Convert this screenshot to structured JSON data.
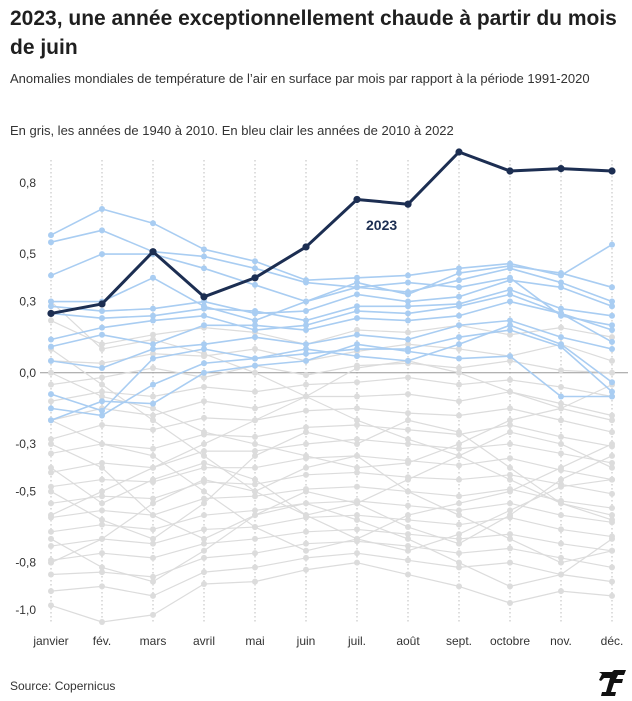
{
  "title": "2023, une année exceptionnellement chaude à partir du mois de juin",
  "subtitle": "Anomalies mondiales de température de l’air en surface par mois par rapport à la période 1991-2020",
  "note": "En gris, les années de 1940 à 2010. En bleu clair les années de 2010 à 2022",
  "source": "Source: Copernicus",
  "logo_icon": "le-figaro-logo",
  "colors": {
    "grey": "#dcdcdc",
    "light_blue": "#a9cdf2",
    "highlight": "#1c2e52",
    "grid": "#bdbdbd",
    "zero": "#999999"
  },
  "chart_data": {
    "type": "line",
    "categories": [
      "janvier",
      "fév.",
      "mars",
      "avril",
      "mai",
      "juin",
      "juil.",
      "août",
      "sept.",
      "octobre",
      "nov.",
      "déc."
    ],
    "y_ticks": [
      {
        "value": 0.8,
        "label": "0,8"
      },
      {
        "value": 0.5,
        "label": "0,5"
      },
      {
        "value": 0.3,
        "label": "0,3"
      },
      {
        "value": 0.0,
        "label": "0,0"
      },
      {
        "value": -0.3,
        "label": "-0,3"
      },
      {
        "value": -0.5,
        "label": "-0,5"
      },
      {
        "value": -0.8,
        "label": "-0,8"
      },
      {
        "value": -1.0,
        "label": "-1,0"
      }
    ],
    "ylim": [
      -1.05,
      0.93
    ],
    "grid": "vertical dotted",
    "highlight": {
      "name": "2023",
      "values": [
        0.25,
        0.29,
        0.51,
        0.32,
        0.4,
        0.53,
        0.73,
        0.71,
        0.93,
        0.85,
        0.86,
        0.85
      ]
    },
    "blue_series": [
      [
        0.58,
        0.69,
        0.63,
        0.52,
        0.47,
        0.39,
        0.4,
        0.41,
        0.44,
        0.46,
        0.41,
        0.54
      ],
      [
        0.55,
        0.6,
        0.51,
        0.49,
        0.44,
        0.38,
        0.36,
        0.34,
        0.39,
        0.44,
        0.38,
        0.3
      ],
      [
        0.41,
        0.5,
        0.5,
        0.44,
        0.37,
        0.3,
        0.38,
        0.33,
        0.42,
        0.45,
        0.42,
        0.36
      ],
      [
        0.3,
        0.3,
        0.4,
        0.28,
        0.22,
        0.3,
        0.36,
        0.38,
        0.36,
        0.4,
        0.24,
        0.2
      ],
      [
        0.28,
        0.26,
        0.27,
        0.3,
        0.25,
        0.26,
        0.33,
        0.3,
        0.32,
        0.39,
        0.36,
        0.28
      ],
      [
        0.25,
        0.23,
        0.24,
        0.27,
        0.26,
        0.22,
        0.28,
        0.28,
        0.29,
        0.35,
        0.27,
        0.24
      ],
      [
        0.14,
        0.19,
        0.22,
        0.24,
        0.18,
        0.2,
        0.26,
        0.25,
        0.28,
        0.33,
        0.25,
        0.13
      ],
      [
        0.11,
        0.16,
        0.12,
        0.2,
        0.2,
        0.18,
        0.23,
        0.22,
        0.24,
        0.3,
        0.25,
        0.18
      ],
      [
        0.05,
        0.02,
        0.1,
        0.12,
        0.15,
        0.12,
        0.16,
        0.14,
        0.2,
        0.22,
        0.15,
        0.1
      ],
      [
        -0.09,
        -0.16,
        0.06,
        0.1,
        0.06,
        0.08,
        0.1,
        0.1,
        0.15,
        0.18,
        0.11,
        -0.08
      ],
      [
        -0.15,
        -0.18,
        -0.05,
        0.04,
        0.06,
        0.1,
        0.07,
        0.05,
        0.12,
        0.2,
        0.12,
        -0.04
      ],
      [
        -0.2,
        -0.12,
        -0.13,
        0.0,
        0.03,
        0.05,
        0.12,
        0.09,
        0.06,
        0.07,
        -0.1,
        -0.1
      ]
    ],
    "grey_series": [
      [
        0.22,
        0.12,
        0.16,
        0.19,
        0.17,
        0.12,
        0.18,
        0.17,
        0.2,
        0.16,
        0.19,
        0.15
      ],
      [
        0.05,
        0.04,
        0.08,
        0.07,
        0.1,
        0.05,
        0.09,
        0.12,
        0.1,
        0.07,
        0.12,
        0.05
      ],
      [
        -0.05,
        -0.02,
        0.02,
        -0.02,
        0.03,
        -0.01,
        0.03,
        0.04,
        0.02,
        0.05,
        0.01,
        0.0
      ],
      [
        -0.12,
        -0.08,
        -0.1,
        -0.06,
        -0.08,
        -0.05,
        -0.04,
        -0.02,
        -0.05,
        -0.03,
        -0.06,
        -0.1
      ],
      [
        -0.2,
        -0.15,
        -0.18,
        -0.12,
        -0.15,
        -0.1,
        -0.1,
        -0.09,
        -0.12,
        -0.08,
        -0.13,
        -0.18
      ],
      [
        -0.28,
        -0.22,
        -0.24,
        -0.19,
        -0.2,
        -0.16,
        -0.15,
        -0.17,
        -0.18,
        -0.15,
        -0.2,
        -0.25
      ],
      [
        -0.34,
        -0.3,
        -0.32,
        -0.26,
        -0.27,
        -0.23,
        -0.22,
        -0.24,
        -0.26,
        -0.22,
        -0.27,
        -0.31
      ],
      [
        -0.42,
        -0.38,
        -0.4,
        -0.33,
        -0.33,
        -0.3,
        -0.28,
        -0.3,
        -0.32,
        -0.3,
        -0.34,
        -0.38
      ],
      [
        -0.48,
        -0.45,
        -0.46,
        -0.4,
        -0.4,
        -0.36,
        -0.35,
        -0.37,
        -0.39,
        -0.36,
        -0.41,
        -0.45
      ],
      [
        -0.55,
        -0.52,
        -0.53,
        -0.46,
        -0.47,
        -0.43,
        -0.42,
        -0.44,
        -0.45,
        -0.43,
        -0.47,
        -0.51
      ],
      [
        -0.61,
        -0.58,
        -0.6,
        -0.53,
        -0.52,
        -0.49,
        -0.48,
        -0.5,
        -0.52,
        -0.49,
        -0.54,
        -0.57
      ],
      [
        -0.67,
        -0.64,
        -0.66,
        -0.6,
        -0.58,
        -0.55,
        -0.54,
        -0.56,
        -0.58,
        -0.55,
        -0.6,
        -0.63
      ],
      [
        -0.73,
        -0.7,
        -0.72,
        -0.66,
        -0.65,
        -0.61,
        -0.6,
        -0.62,
        -0.64,
        -0.61,
        -0.66,
        -0.69
      ],
      [
        -0.79,
        -0.76,
        -0.78,
        -0.72,
        -0.7,
        -0.67,
        -0.66,
        -0.68,
        -0.7,
        -0.68,
        -0.72,
        -0.75
      ],
      [
        -0.85,
        -0.84,
        -0.86,
        -0.78,
        -0.76,
        -0.72,
        -0.71,
        -0.73,
        -0.76,
        -0.74,
        -0.78,
        -0.82
      ],
      [
        -0.92,
        -0.9,
        -0.94,
        -0.84,
        -0.82,
        -0.78,
        -0.76,
        -0.79,
        -0.82,
        -0.8,
        -0.85,
        -0.88
      ],
      [
        -0.98,
        -1.05,
        -1.02,
        -0.89,
        -0.88,
        -0.83,
        -0.8,
        -0.85,
        -0.9,
        -0.97,
        -0.92,
        -0.94
      ],
      [
        0.3,
        0.1,
        0.14,
        0.08,
        0.0,
        -0.1,
        -0.2,
        -0.28,
        -0.35,
        -0.45,
        -0.55,
        -0.62
      ],
      [
        -0.6,
        -0.5,
        -0.4,
        -0.3,
        -0.2,
        -0.1,
        0.02,
        0.05,
        0.0,
        -0.08,
        -0.15,
        -0.2
      ],
      [
        0.1,
        -0.05,
        -0.2,
        -0.35,
        -0.5,
        -0.6,
        -0.55,
        -0.45,
        -0.35,
        -0.25,
        -0.3,
        -0.4
      ],
      [
        -0.8,
        -0.7,
        -0.55,
        -0.45,
        -0.5,
        -0.4,
        -0.35,
        -0.5,
        -0.6,
        -0.7,
        -0.8,
        -0.75
      ],
      [
        -0.3,
        -0.4,
        -0.6,
        -0.7,
        -0.6,
        -0.5,
        -0.55,
        -0.65,
        -0.72,
        -0.6,
        -0.45,
        -0.35
      ],
      [
        -0.5,
        -0.62,
        -0.7,
        -0.55,
        -0.35,
        -0.25,
        -0.3,
        -0.2,
        -0.25,
        -0.4,
        -0.55,
        -0.6
      ],
      [
        -0.2,
        -0.3,
        -0.35,
        -0.5,
        -0.65,
        -0.75,
        -0.7,
        -0.6,
        -0.55,
        -0.5,
        -0.4,
        -0.3
      ],
      [
        -0.7,
        -0.82,
        -0.88,
        -0.75,
        -0.6,
        -0.55,
        -0.62,
        -0.7,
        -0.8,
        -0.9,
        -0.85,
        -0.7
      ],
      [
        0.0,
        -0.1,
        -0.15,
        -0.25,
        -0.3,
        -0.35,
        -0.4,
        -0.38,
        -0.3,
        -0.2,
        -0.15,
        -0.05
      ],
      [
        -0.4,
        -0.55,
        -0.45,
        -0.38,
        -0.45,
        -0.6,
        -0.7,
        -0.75,
        -0.68,
        -0.58,
        -0.48,
        -0.45
      ]
    ]
  }
}
